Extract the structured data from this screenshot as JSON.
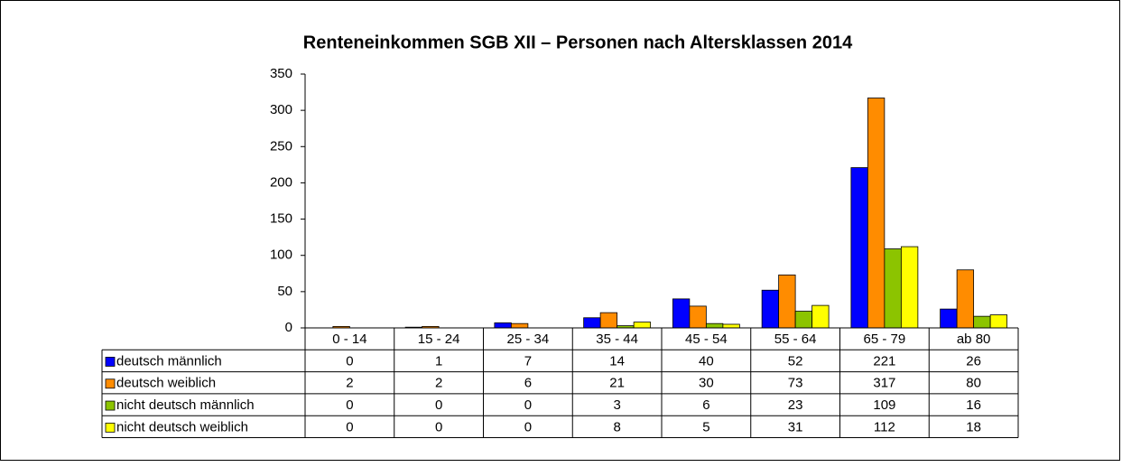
{
  "chart_data": {
    "type": "bar",
    "title": "Renteneinkommen SGB XII – Personen nach Altersklassen 2014",
    "categories": [
      "0 - 14",
      "15 - 24",
      "25 - 34",
      "35 - 44",
      "45 - 54",
      "55 - 64",
      "65 - 79",
      "ab 80"
    ],
    "series": [
      {
        "name": "deutsch männlich",
        "color": "#0000ff",
        "values": [
          0,
          1,
          7,
          14,
          40,
          52,
          221,
          26
        ]
      },
      {
        "name": "deutsch weiblich",
        "color": "#ff8c00",
        "values": [
          2,
          2,
          6,
          21,
          30,
          73,
          317,
          80
        ]
      },
      {
        "name": "nicht deutsch männlich",
        "color": "#8cc400",
        "values": [
          0,
          0,
          0,
          3,
          6,
          23,
          109,
          16
        ]
      },
      {
        "name": "nicht deutsch weiblich",
        "color": "#ffff00",
        "values": [
          0,
          0,
          0,
          8,
          5,
          31,
          112,
          18
        ]
      }
    ],
    "ylim": [
      0,
      350
    ],
    "yticks": [
      0,
      50,
      100,
      150,
      200,
      250,
      300,
      350
    ],
    "grid": false,
    "data_table": true
  }
}
